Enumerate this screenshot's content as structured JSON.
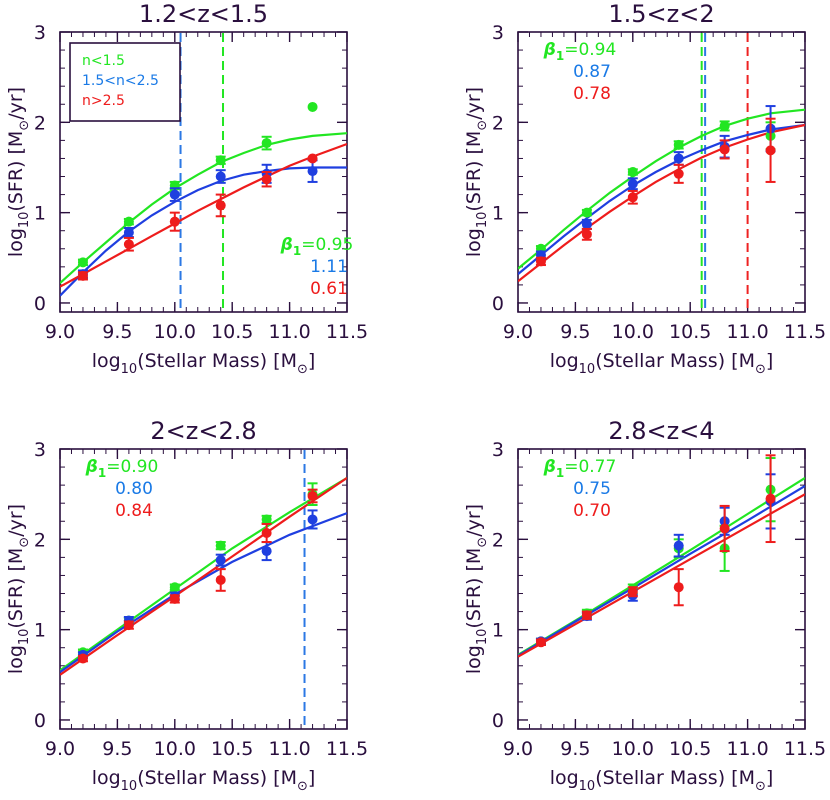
{
  "colors": {
    "green": "#22e622",
    "blue": "#1f3fe0",
    "red": "#ee1c1c",
    "label_blue": "#1a7ae6",
    "dashed_blue": "#2b78e4",
    "dashed_red": "#ee2222",
    "dashed_green": "#22e622",
    "axis": "#2a0f3e"
  },
  "legend": {
    "entries": [
      {
        "label": "n<1.5",
        "color": "green"
      },
      {
        "label": "1.5<n<2.5",
        "color": "label_blue"
      },
      {
        "label": "n>2.5",
        "color": "red"
      }
    ]
  },
  "chart_data": [
    {
      "type": "scatter",
      "title": "1.2<z<1.5",
      "xlabel": "log10(Stellar Mass) [M⊙]",
      "ylabel": "log10(SFR) [M⊙/yr]",
      "xlim": [
        9.0,
        11.5
      ],
      "ylim": [
        -0.1,
        3.0
      ],
      "xticks": [
        "9.0",
        "9.5",
        "10.0",
        "10.5",
        "11.0",
        "11.5"
      ],
      "yticks": [
        "0",
        "1",
        "2",
        "3"
      ],
      "beta_label": "β1=0.95",
      "beta_values": [
        "1.11",
        "0.61"
      ],
      "vlines": [
        {
          "x": 10.05,
          "color": "dashed_blue"
        },
        {
          "x": 10.42,
          "color": "dashed_green"
        }
      ],
      "series": [
        {
          "name": "n<1.5",
          "color": "green",
          "x": [
            9.2,
            9.6,
            10.0,
            10.4,
            10.8,
            11.2
          ],
          "y": [
            0.45,
            0.9,
            1.3,
            1.58,
            1.77,
            2.17
          ],
          "err": [
            0.03,
            0.03,
            0.04,
            0.04,
            0.07,
            0.0
          ],
          "curve": [
            [
              9.0,
              0.22
            ],
            [
              9.2,
              0.45
            ],
            [
              9.4,
              0.67
            ],
            [
              9.6,
              0.89
            ],
            [
              9.8,
              1.09
            ],
            [
              10.0,
              1.27
            ],
            [
              10.2,
              1.42
            ],
            [
              10.4,
              1.56
            ],
            [
              10.6,
              1.66
            ],
            [
              10.8,
              1.75
            ],
            [
              11.0,
              1.81
            ],
            [
              11.2,
              1.85
            ],
            [
              11.5,
              1.88
            ]
          ]
        },
        {
          "name": "1.5<n<2.5",
          "color": "blue",
          "x": [
            9.2,
            9.6,
            10.0,
            10.4,
            10.8,
            11.2
          ],
          "y": [
            0.32,
            0.78,
            1.2,
            1.4,
            1.43,
            1.46
          ],
          "err": [
            0.04,
            0.05,
            0.07,
            0.07,
            0.1,
            0.12
          ],
          "curve": [
            [
              9.0,
              0.08
            ],
            [
              9.2,
              0.34
            ],
            [
              9.4,
              0.58
            ],
            [
              9.6,
              0.79
            ],
            [
              9.8,
              0.97
            ],
            [
              10.0,
              1.12
            ],
            [
              10.2,
              1.25
            ],
            [
              10.4,
              1.35
            ],
            [
              10.6,
              1.42
            ],
            [
              10.8,
              1.46
            ],
            [
              11.0,
              1.49
            ],
            [
              11.2,
              1.5
            ],
            [
              11.5,
              1.5
            ]
          ]
        },
        {
          "name": "n>2.5",
          "color": "red",
          "x": [
            9.2,
            9.6,
            10.0,
            10.4,
            10.8,
            11.2
          ],
          "y": [
            0.3,
            0.65,
            0.9,
            1.08,
            1.37,
            1.6
          ],
          "err": [
            0.04,
            0.07,
            0.1,
            0.12,
            0.08,
            0.0
          ],
          "curve": [
            [
              9.0,
              0.18
            ],
            [
              9.2,
              0.32
            ],
            [
              9.4,
              0.46
            ],
            [
              9.6,
              0.6
            ],
            [
              9.8,
              0.74
            ],
            [
              10.0,
              0.88
            ],
            [
              10.2,
              1.02
            ],
            [
              10.4,
              1.15
            ],
            [
              10.6,
              1.28
            ],
            [
              10.8,
              1.4
            ],
            [
              11.0,
              1.52
            ],
            [
              11.2,
              1.62
            ],
            [
              11.5,
              1.76
            ]
          ]
        }
      ]
    },
    {
      "type": "scatter",
      "title": "1.5<z<2",
      "xlabel": "log10(Stellar Mass) [M⊙]",
      "ylabel": "log10(SFR) [M⊙/yr]",
      "xlim": [
        9.0,
        11.5
      ],
      "ylim": [
        -0.1,
        3.0
      ],
      "xticks": [
        "9.0",
        "9.5",
        "10.0",
        "10.5",
        "11.0",
        "11.5"
      ],
      "yticks": [
        "0",
        "1",
        "2",
        "3"
      ],
      "beta_label": "β1=0.94",
      "beta_values": [
        "0.87",
        "0.78"
      ],
      "vlines": [
        {
          "x": 10.6,
          "color": "dashed_green"
        },
        {
          "x": 10.63,
          "color": "dashed_blue"
        },
        {
          "x": 11.0,
          "color": "dashed_red"
        }
      ],
      "series": [
        {
          "name": "n<1.5",
          "color": "green",
          "x": [
            9.2,
            9.6,
            10.0,
            10.4,
            10.8,
            11.2
          ],
          "y": [
            0.6,
            1.0,
            1.45,
            1.75,
            1.96,
            1.85
          ],
          "err": [
            0.03,
            0.03,
            0.03,
            0.04,
            0.05,
            0.15
          ],
          "curve": [
            [
              9.0,
              0.38
            ],
            [
              9.2,
              0.59
            ],
            [
              9.4,
              0.81
            ],
            [
              9.6,
              1.02
            ],
            [
              9.8,
              1.22
            ],
            [
              10.0,
              1.4
            ],
            [
              10.2,
              1.57
            ],
            [
              10.4,
              1.72
            ],
            [
              10.6,
              1.85
            ],
            [
              10.8,
              1.96
            ],
            [
              11.0,
              2.04
            ],
            [
              11.2,
              2.1
            ],
            [
              11.5,
              2.14
            ]
          ]
        },
        {
          "name": "1.5<n<2.5",
          "color": "blue",
          "x": [
            9.2,
            9.6,
            10.0,
            10.4,
            10.8,
            11.2
          ],
          "y": [
            0.53,
            0.87,
            1.32,
            1.6,
            1.73,
            1.93
          ],
          "err": [
            0.04,
            0.05,
            0.06,
            0.07,
            0.12,
            0.25
          ],
          "curve": [
            [
              9.0,
              0.32
            ],
            [
              9.2,
              0.53
            ],
            [
              9.4,
              0.74
            ],
            [
              9.6,
              0.94
            ],
            [
              9.8,
              1.13
            ],
            [
              10.0,
              1.3
            ],
            [
              10.2,
              1.45
            ],
            [
              10.4,
              1.58
            ],
            [
              10.6,
              1.69
            ],
            [
              10.8,
              1.79
            ],
            [
              11.0,
              1.86
            ],
            [
              11.2,
              1.92
            ],
            [
              11.5,
              1.97
            ]
          ]
        },
        {
          "name": "n>2.5",
          "color": "red",
          "x": [
            9.2,
            9.6,
            10.0,
            10.4,
            10.8,
            11.2
          ],
          "y": [
            0.46,
            0.76,
            1.17,
            1.43,
            1.7,
            1.69
          ],
          "err": [
            0.04,
            0.06,
            0.07,
            0.1,
            0.1,
            0.35
          ],
          "curve": [
            [
              9.0,
              0.24
            ],
            [
              9.2,
              0.44
            ],
            [
              9.4,
              0.64
            ],
            [
              9.6,
              0.83
            ],
            [
              9.8,
              1.01
            ],
            [
              10.0,
              1.18
            ],
            [
              10.2,
              1.34
            ],
            [
              10.4,
              1.48
            ],
            [
              10.6,
              1.61
            ],
            [
              10.8,
              1.72
            ],
            [
              11.0,
              1.81
            ],
            [
              11.2,
              1.89
            ],
            [
              11.5,
              1.97
            ]
          ]
        }
      ]
    },
    {
      "type": "scatter",
      "title": "2<z<2.8",
      "xlabel": "log10(Stellar Mass) [M⊙]",
      "ylabel": "log10(SFR) [M⊙/yr]",
      "xlim": [
        9.0,
        11.5
      ],
      "ylim": [
        -0.1,
        3.0
      ],
      "xticks": [
        "9.0",
        "9.5",
        "10.0",
        "10.5",
        "11.0",
        "11.5"
      ],
      "yticks": [
        "0",
        "1",
        "2",
        "3"
      ],
      "beta_label": "β1=0.90",
      "beta_values": [
        "0.80",
        "0.84"
      ],
      "vlines": [
        {
          "x": 11.13,
          "color": "dashed_blue"
        }
      ],
      "series": [
        {
          "name": "n<1.5",
          "color": "green",
          "x": [
            9.2,
            9.6,
            10.0,
            10.4,
            10.8,
            11.2
          ],
          "y": [
            0.75,
            1.1,
            1.47,
            1.93,
            2.22,
            2.5
          ],
          "err": [
            0.03,
            0.03,
            0.03,
            0.04,
            0.04,
            0.12
          ],
          "curve": [
            [
              9.0,
              0.55
            ],
            [
              9.5,
              1.0
            ],
            [
              10.0,
              1.45
            ],
            [
              10.5,
              1.9
            ],
            [
              11.0,
              2.3
            ],
            [
              11.5,
              2.68
            ]
          ]
        },
        {
          "name": "1.5<n<2.5",
          "color": "blue",
          "x": [
            9.2,
            9.6,
            10.0,
            10.4,
            10.8,
            11.2
          ],
          "y": [
            0.72,
            1.1,
            1.37,
            1.77,
            1.87,
            2.22
          ],
          "err": [
            0.03,
            0.04,
            0.04,
            0.06,
            0.1,
            0.1
          ],
          "curve": [
            [
              9.0,
              0.53
            ],
            [
              9.5,
              0.98
            ],
            [
              10.0,
              1.39
            ],
            [
              10.5,
              1.75
            ],
            [
              11.0,
              2.05
            ],
            [
              11.5,
              2.29
            ]
          ]
        },
        {
          "name": "n>2.5",
          "color": "red",
          "x": [
            9.2,
            9.6,
            10.0,
            10.4,
            10.8,
            11.2
          ],
          "y": [
            0.68,
            1.05,
            1.34,
            1.55,
            2.07,
            2.48
          ],
          "err": [
            0.03,
            0.04,
            0.04,
            0.12,
            0.1,
            0.07
          ],
          "curve": [
            [
              9.0,
              0.5
            ],
            [
              9.5,
              0.94
            ],
            [
              10.0,
              1.37
            ],
            [
              10.5,
              1.81
            ],
            [
              11.0,
              2.25
            ],
            [
              11.5,
              2.68
            ]
          ]
        }
      ]
    },
    {
      "type": "scatter",
      "title": "2.8<z<4",
      "xlabel": "log10(Stellar Mass) [M⊙]",
      "ylabel": "log10(SFR) [M⊙/yr]",
      "xlim": [
        9.0,
        11.5
      ],
      "ylim": [
        -0.1,
        3.0
      ],
      "xticks": [
        "9.0",
        "9.5",
        "10.0",
        "10.5",
        "11.0",
        "11.5"
      ],
      "yticks": [
        "0",
        "1",
        "2",
        "3"
      ],
      "beta_label": "β1=0.77",
      "beta_values": [
        "0.75",
        "0.70"
      ],
      "vlines": [],
      "series": [
        {
          "name": "n<1.5",
          "color": "green",
          "x": [
            9.2,
            9.6,
            10.0,
            10.4,
            10.8,
            11.2
          ],
          "y": [
            0.87,
            1.18,
            1.45,
            1.9,
            1.9,
            2.55
          ],
          "err": [
            0.03,
            0.04,
            0.05,
            0.1,
            0.25,
            0.35
          ],
          "curve": [
            [
              9.0,
              0.72
            ],
            [
              9.5,
              1.1
            ],
            [
              10.0,
              1.49
            ],
            [
              10.5,
              1.88
            ],
            [
              11.0,
              2.28
            ],
            [
              11.5,
              2.68
            ]
          ]
        },
        {
          "name": "1.5<n<2.5",
          "color": "blue",
          "x": [
            9.2,
            9.6,
            10.0,
            10.4,
            10.8,
            11.2
          ],
          "y": [
            0.87,
            1.15,
            1.38,
            1.93,
            2.2,
            2.42
          ],
          "err": [
            0.03,
            0.04,
            0.06,
            0.12,
            0.15,
            0.3
          ],
          "curve": [
            [
              9.0,
              0.71
            ],
            [
              9.5,
              1.09
            ],
            [
              10.0,
              1.46
            ],
            [
              10.5,
              1.84
            ],
            [
              11.0,
              2.21
            ],
            [
              11.5,
              2.59
            ]
          ]
        },
        {
          "name": "n>2.5",
          "color": "red",
          "x": [
            9.2,
            9.6,
            10.0,
            10.4,
            10.8,
            11.2
          ],
          "y": [
            0.86,
            1.16,
            1.42,
            1.47,
            2.12,
            2.45
          ],
          "err": [
            0.03,
            0.04,
            0.05,
            0.2,
            0.25,
            0.48
          ],
          "curve": [
            [
              9.0,
              0.7
            ],
            [
              9.5,
              1.06
            ],
            [
              10.0,
              1.42
            ],
            [
              10.5,
              1.78
            ],
            [
              11.0,
              2.14
            ],
            [
              11.5,
              2.5
            ]
          ]
        }
      ]
    }
  ]
}
